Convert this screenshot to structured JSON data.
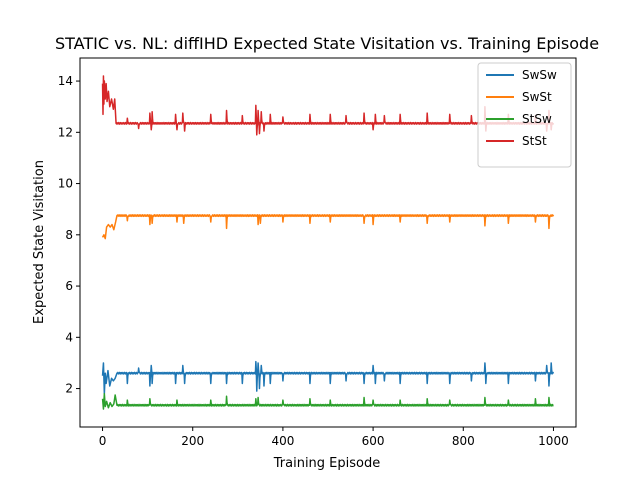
{
  "chart_data": {
    "type": "line",
    "title": "STATIC vs. NL: diffIHD Expected State Visitation vs. Training Episode",
    "xlabel": "Training Episode",
    "ylabel": "Expected State Visitation",
    "xlim": [
      -50,
      1050
    ],
    "ylim": [
      0.5,
      14.9
    ],
    "xticks": [
      0,
      200,
      400,
      600,
      800,
      1000
    ],
    "yticks": [
      2,
      4,
      6,
      8,
      10,
      12,
      14
    ],
    "legend_position": "top-right",
    "grid": false,
    "x_domain": [
      0,
      1000
    ],
    "series": [
      {
        "name": "SwSw",
        "color": "#1f77b4",
        "baseline": 2.6,
        "initial": [
          [
            0,
            2.5
          ],
          [
            2,
            3.0
          ],
          [
            4,
            1.8
          ],
          [
            6,
            2.6
          ],
          [
            8,
            2.2
          ],
          [
            12,
            2.7
          ],
          [
            16,
            2.1
          ],
          [
            20,
            2.4
          ],
          [
            24,
            2.3
          ],
          [
            28,
            2.4
          ],
          [
            32,
            2.6
          ]
        ],
        "spikes": [
          [
            55,
            -0.4
          ],
          [
            80,
            0.2
          ],
          [
            105,
            -0.5
          ],
          [
            108,
            0.3
          ],
          [
            110,
            -0.4
          ],
          [
            162,
            -0.4
          ],
          [
            178,
            0.3
          ],
          [
            182,
            -0.4
          ],
          [
            240,
            -0.4
          ],
          [
            275,
            -0.4
          ],
          [
            310,
            -0.4
          ],
          [
            340,
            0.45
          ],
          [
            342,
            -0.7
          ],
          [
            345,
            0.4
          ],
          [
            348,
            -0.6
          ],
          [
            352,
            0.3
          ],
          [
            358,
            -0.5
          ],
          [
            372,
            -0.4
          ],
          [
            400,
            -0.3
          ],
          [
            460,
            -0.4
          ],
          [
            505,
            -0.4
          ],
          [
            540,
            -0.3
          ],
          [
            580,
            -0.4
          ],
          [
            600,
            0.3
          ],
          [
            605,
            -0.4
          ],
          [
            625,
            -0.3
          ],
          [
            660,
            -0.4
          ],
          [
            720,
            -0.4
          ],
          [
            770,
            -0.4
          ],
          [
            818,
            -0.3
          ],
          [
            848,
            0.4
          ],
          [
            850,
            -0.4
          ],
          [
            900,
            -0.4
          ],
          [
            960,
            -0.3
          ],
          [
            985,
            0.3
          ],
          [
            990,
            -0.5
          ],
          [
            995,
            0.4
          ]
        ]
      },
      {
        "name": "SwSt",
        "color": "#ff7f0e",
        "baseline": 8.75,
        "initial": [
          [
            0,
            7.9
          ],
          [
            3,
            8.0
          ],
          [
            6,
            7.85
          ],
          [
            9,
            8.3
          ],
          [
            13,
            8.4
          ],
          [
            17,
            8.3
          ],
          [
            21,
            8.4
          ],
          [
            25,
            8.2
          ],
          [
            29,
            8.5
          ],
          [
            32,
            8.75
          ]
        ],
        "spikes": [
          [
            55,
            -0.2
          ],
          [
            105,
            -0.35
          ],
          [
            110,
            -0.3
          ],
          [
            165,
            -0.25
          ],
          [
            180,
            -0.3
          ],
          [
            240,
            -0.25
          ],
          [
            275,
            -0.5
          ],
          [
            345,
            -0.35
          ],
          [
            350,
            -0.3
          ],
          [
            400,
            -0.25
          ],
          [
            460,
            -0.3
          ],
          [
            505,
            -0.25
          ],
          [
            580,
            -0.3
          ],
          [
            600,
            -0.35
          ],
          [
            660,
            -0.25
          ],
          [
            720,
            -0.3
          ],
          [
            770,
            -0.25
          ],
          [
            848,
            -0.4
          ],
          [
            900,
            -0.3
          ],
          [
            960,
            -0.25
          ],
          [
            990,
            -0.5
          ]
        ]
      },
      {
        "name": "StSw",
        "color": "#2ca02c",
        "baseline": 1.35,
        "initial": [
          [
            0,
            1.6
          ],
          [
            2,
            1.2
          ],
          [
            4,
            1.8
          ],
          [
            6,
            1.3
          ],
          [
            9,
            1.5
          ],
          [
            13,
            1.25
          ],
          [
            17,
            1.45
          ],
          [
            21,
            1.3
          ],
          [
            25,
            1.4
          ],
          [
            28,
            1.75
          ],
          [
            32,
            1.35
          ]
        ],
        "spikes": [
          [
            55,
            0.2
          ],
          [
            105,
            0.25
          ],
          [
            165,
            0.2
          ],
          [
            240,
            0.2
          ],
          [
            275,
            0.35
          ],
          [
            340,
            0.25
          ],
          [
            345,
            0.3
          ],
          [
            400,
            0.2
          ],
          [
            460,
            0.25
          ],
          [
            505,
            0.2
          ],
          [
            580,
            0.3
          ],
          [
            600,
            0.2
          ],
          [
            660,
            0.2
          ],
          [
            720,
            0.25
          ],
          [
            770,
            0.2
          ],
          [
            848,
            0.3
          ],
          [
            900,
            0.2
          ],
          [
            960,
            0.25
          ],
          [
            990,
            0.3
          ]
        ]
      },
      {
        "name": "StSt",
        "color": "#d62728",
        "baseline": 12.35,
        "initial": [
          [
            0,
            13.9
          ],
          [
            1,
            12.7
          ],
          [
            2,
            14.2
          ],
          [
            3,
            13.1
          ],
          [
            4,
            14.0
          ],
          [
            6,
            13.3
          ],
          [
            8,
            13.9
          ],
          [
            10,
            13.2
          ],
          [
            13,
            13.6
          ],
          [
            16,
            13.0
          ],
          [
            20,
            13.3
          ],
          [
            24,
            12.9
          ],
          [
            27,
            13.3
          ],
          [
            30,
            12.35
          ]
        ],
        "spikes": [
          [
            55,
            0.2
          ],
          [
            80,
            -0.2
          ],
          [
            105,
            0.4
          ],
          [
            108,
            -0.25
          ],
          [
            110,
            0.45
          ],
          [
            162,
            0.35
          ],
          [
            165,
            -0.25
          ],
          [
            178,
            0.4
          ],
          [
            182,
            -0.3
          ],
          [
            240,
            0.35
          ],
          [
            275,
            0.5
          ],
          [
            310,
            0.3
          ],
          [
            340,
            0.7
          ],
          [
            342,
            -0.45
          ],
          [
            345,
            0.5
          ],
          [
            348,
            -0.4
          ],
          [
            352,
            0.45
          ],
          [
            358,
            -0.3
          ],
          [
            372,
            0.35
          ],
          [
            400,
            0.25
          ],
          [
            460,
            0.35
          ],
          [
            505,
            0.35
          ],
          [
            540,
            0.3
          ],
          [
            580,
            0.4
          ],
          [
            600,
            -0.25
          ],
          [
            605,
            0.35
          ],
          [
            625,
            0.3
          ],
          [
            660,
            0.35
          ],
          [
            720,
            0.4
          ],
          [
            770,
            0.35
          ],
          [
            818,
            0.3
          ],
          [
            848,
            0.65
          ],
          [
            850,
            -0.3
          ],
          [
            900,
            0.35
          ],
          [
            960,
            0.3
          ],
          [
            985,
            -0.3
          ],
          [
            990,
            0.5
          ],
          [
            995,
            -0.25
          ]
        ]
      }
    ]
  }
}
